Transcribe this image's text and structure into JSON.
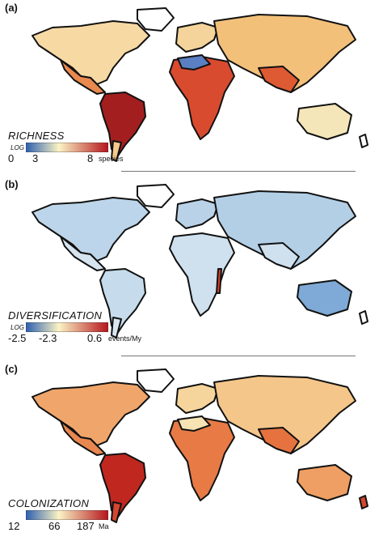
{
  "colors": {
    "scale_low": "#2c5fb0",
    "scale_mid": "#fbf3c4",
    "scale_high": "#b5151c",
    "land_outline": "#111111",
    "separator": "#777777"
  },
  "panels": [
    {
      "label": "(a)",
      "legend": {
        "title": "RICHNESS",
        "scale_note": "LOG",
        "ticks": [
          "0",
          "3",
          "8"
        ],
        "unit": "species"
      }
    },
    {
      "label": "(b)",
      "legend": {
        "title": "DIVERSIFICATION",
        "scale_note": "LOG",
        "ticks": [
          "-2.5",
          "-2.3",
          "0.6"
        ],
        "unit": "events/My"
      }
    },
    {
      "label": "(c)",
      "legend": {
        "title": "COLONIZATION",
        "scale_note": "",
        "ticks": [
          "12",
          "66",
          "187"
        ],
        "unit": "Ma"
      }
    }
  ]
}
